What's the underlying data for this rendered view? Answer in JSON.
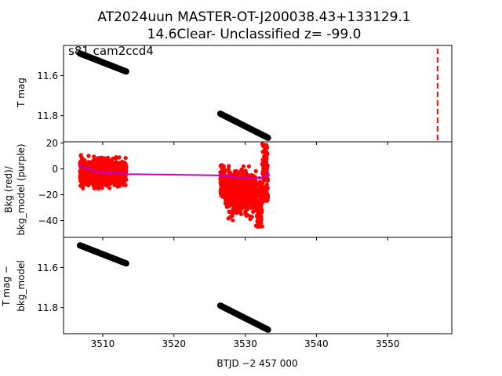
{
  "title_line1": "AT2024uun  MASTER-OT-J200038.43+133129.1",
  "title_line2": "14.6Clear- Unclassified z= -99.0",
  "colors": {
    "data": "#000000",
    "bkg": "#ff0000",
    "bkg_model": "#bf00bf",
    "event_line": "#ff0000"
  },
  "chart_data": [
    {
      "type": "scatter",
      "panel": "top",
      "annotation": "s81 cam2ccd4",
      "ylabel": "T mag",
      "y_inverted": true,
      "xlim": [
        3504.5,
        3559.0
      ],
      "ylim": [
        11.45,
        11.93
      ],
      "yticks": [
        11.6,
        11.8
      ],
      "ytick_labels": [
        "11.6",
        "11.8"
      ],
      "segments": [
        {
          "x_start": 3506.8,
          "x_end": 3513.3,
          "y_start": 11.49,
          "y_end": 11.58
        },
        {
          "x_start": 3526.5,
          "x_end": 3533.2,
          "y_start": 11.79,
          "y_end": 11.91
        }
      ],
      "event_vline_x": 3557.0
    },
    {
      "type": "scatter",
      "panel": "middle",
      "ylabel_line1": "Bkg (red)/",
      "ylabel_line2": "bkg_model (purple)",
      "xlim": [
        3504.5,
        3559.0
      ],
      "ylim": [
        -53,
        21
      ],
      "yticks": [
        20,
        0,
        -20,
        -40
      ],
      "ytick_labels": [
        "20",
        "0",
        "−20",
        "−40"
      ],
      "bkg_segments": [
        {
          "x_start": 3506.8,
          "x_end": 3513.3,
          "center": -3,
          "spread": 9
        },
        {
          "x_start": 3526.5,
          "x_end": 3533.2,
          "center": -18,
          "spread": 14
        }
      ],
      "bkg_model": [
        [
          3506.8,
          2
        ],
        [
          3508.0,
          0
        ],
        [
          3509.0,
          -2
        ],
        [
          3510.0,
          -3
        ],
        [
          3511.0,
          -3
        ],
        [
          3512.0,
          -3
        ],
        [
          3513.3,
          -4
        ],
        [
          3526.5,
          -5
        ],
        [
          3528.0,
          -6
        ],
        [
          3530.0,
          -7
        ],
        [
          3532.0,
          -7
        ],
        [
          3533.2,
          -5
        ]
      ]
    },
    {
      "type": "scatter",
      "panel": "bottom",
      "ylabel_line1": "T mag −",
      "ylabel_line2": "bkg_model",
      "xlabel": "BTJD −2 457 000",
      "y_inverted": true,
      "xlim": [
        3504.5,
        3559.0
      ],
      "ylim": [
        11.45,
        11.93
      ],
      "xticks": [
        3510,
        3520,
        3530,
        3540,
        3550
      ],
      "xtick_labels": [
        "3510",
        "3520",
        "3530",
        "3540",
        "3550"
      ],
      "yticks": [
        11.6,
        11.8
      ],
      "ytick_labels": [
        "11.6",
        "11.8"
      ],
      "segments": [
        {
          "x_start": 3506.8,
          "x_end": 3513.3,
          "y_start": 11.49,
          "y_end": 11.58
        },
        {
          "x_start": 3526.5,
          "x_end": 3533.2,
          "y_start": 11.79,
          "y_end": 11.91
        }
      ]
    }
  ]
}
